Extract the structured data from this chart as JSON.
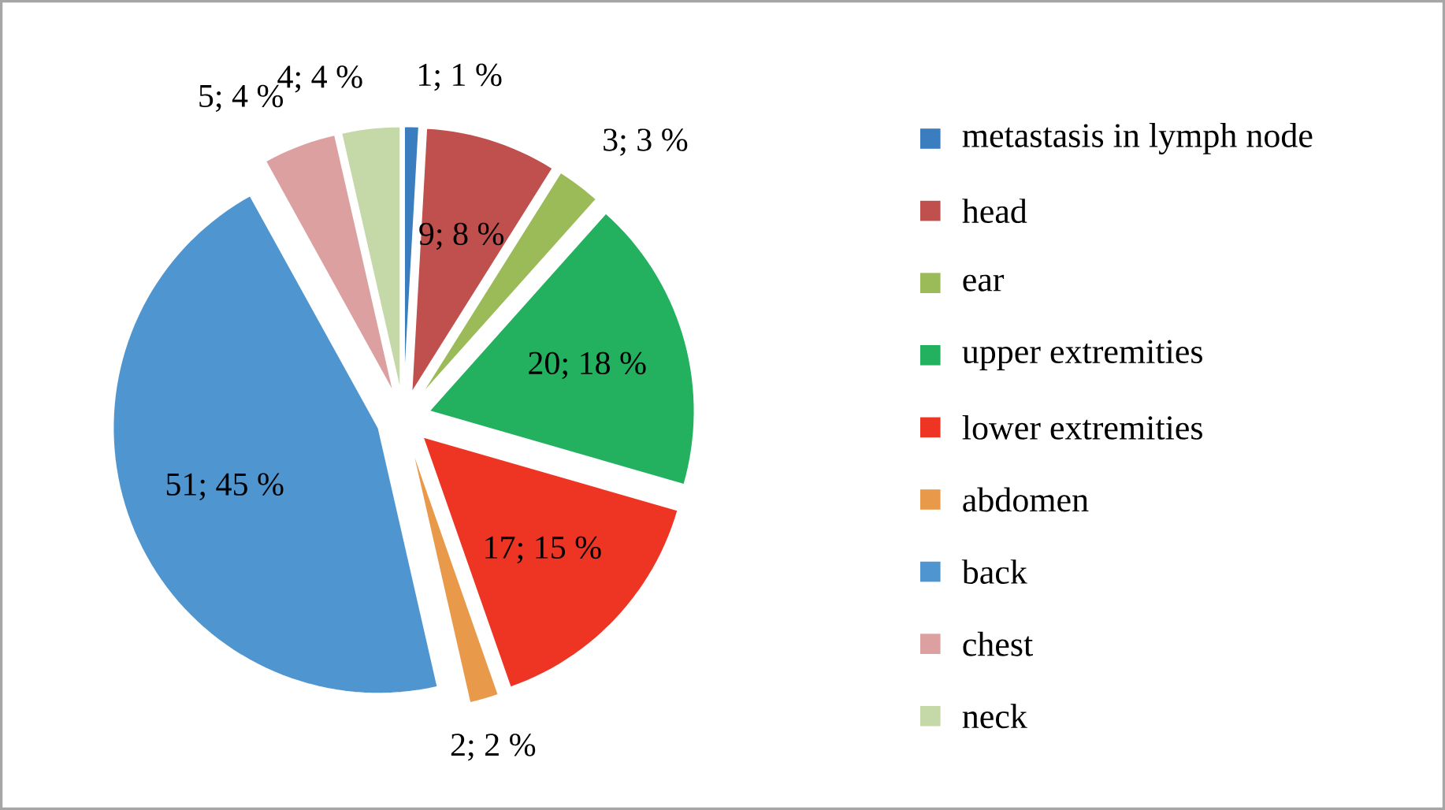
{
  "chart_data": {
    "type": "pie",
    "categories": [
      "metastasis in lymph node",
      "head",
      "ear",
      "upper extremities",
      "lower extremities",
      "abdomen",
      "back",
      "chest",
      "neck"
    ],
    "values": [
      1,
      9,
      3,
      20,
      17,
      2,
      51,
      5,
      4
    ],
    "value_labels": [
      "1; 1 %",
      "9; 8 %",
      "3; 3 %",
      "20; 18 %",
      "17; 15 %",
      "2; 2 %",
      "51; 45 %",
      "5; 4 %",
      "4; 4 %"
    ],
    "colors": [
      "#3a7ebf",
      "#c0504d",
      "#9bbb59",
      "#23b15f",
      "#ee3524",
      "#e8994a",
      "#4f96d1",
      "#dca0a0",
      "#c4d8a8"
    ],
    "legend": "right"
  }
}
